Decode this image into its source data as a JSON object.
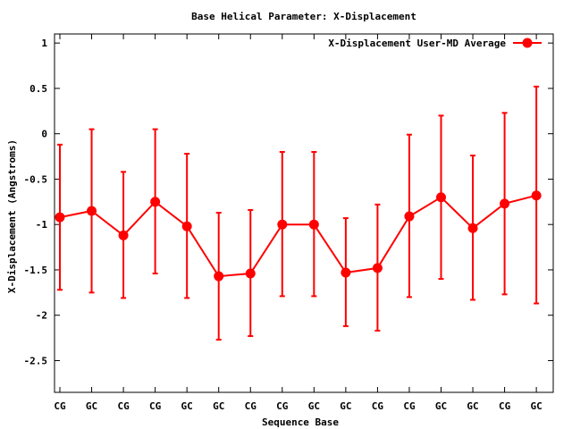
{
  "chart_data": {
    "type": "line",
    "title": "Base  Helical Parameter: X-Displacement",
    "xlabel": "Sequence Base",
    "ylabel": "X-Displacement (Angstroms)",
    "ylim": [
      -2.85,
      1.1
    ],
    "yticks": [
      1,
      0.5,
      0,
      -0.5,
      -1,
      -1.5,
      -2,
      -2.5
    ],
    "ytick_labels": [
      "1",
      "0.5",
      "0",
      "-0.5",
      "-1",
      "-1.5",
      "-2",
      "-2.5"
    ],
    "categories": [
      "CG",
      "GC",
      "CG",
      "CG",
      "GC",
      "GC",
      "CG",
      "CG",
      "GC",
      "GC",
      "CG",
      "CG",
      "GC",
      "GC",
      "CG",
      "GC"
    ],
    "grid": false,
    "legend_position": "top-right",
    "series": [
      {
        "name": "X-Displacement User-MD Average",
        "color": "#ff0000",
        "values": [
          -0.92,
          -0.85,
          -1.12,
          -0.75,
          -1.02,
          -1.57,
          -1.54,
          -1.0,
          -1.0,
          -1.53,
          -1.48,
          -0.91,
          -0.7,
          -1.04,
          -0.77,
          -0.68
        ],
        "err_low": [
          -1.72,
          -1.75,
          -1.81,
          -1.54,
          -1.81,
          -2.27,
          -2.23,
          -1.79,
          -1.79,
          -2.12,
          -2.17,
          -1.8,
          -1.6,
          -1.83,
          -1.77,
          -1.87
        ],
        "err_high": [
          -0.12,
          0.05,
          -0.42,
          0.05,
          -0.22,
          -0.87,
          -0.84,
          -0.2,
          -0.2,
          -0.93,
          -0.78,
          -0.01,
          0.2,
          -0.24,
          0.23,
          0.52
        ]
      }
    ]
  }
}
